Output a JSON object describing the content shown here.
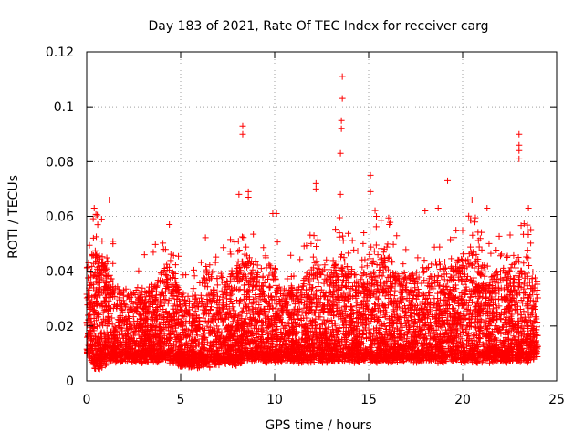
{
  "chart_data": {
    "type": "scatter",
    "title": "Day 183 of 2021, Rate Of TEC Index for receiver carg",
    "xlabel": "GPS time / hours",
    "ylabel": "ROTI / TECUs",
    "xlim": [
      0,
      25
    ],
    "ylim": [
      0,
      0.12
    ],
    "xticks": [
      0,
      5,
      10,
      15,
      20,
      25
    ],
    "xtick_labels": [
      "0",
      "5",
      "10",
      "15",
      "20",
      "25"
    ],
    "yticks": [
      0,
      0.02,
      0.04,
      0.06,
      0.08,
      0.1,
      0.12
    ],
    "ytick_labels": [
      "0",
      "0.02",
      "0.04",
      "0.06",
      "0.08",
      "0.1",
      "0.12"
    ],
    "grid": true,
    "marker": "+",
    "color": "#ff0000",
    "data_range_x": [
      0,
      24
    ],
    "notable_points": [
      {
        "x": 8.3,
        "y": 0.093
      },
      {
        "x": 8.3,
        "y": 0.09
      },
      {
        "x": 13.6,
        "y": 0.111
      },
      {
        "x": 13.6,
        "y": 0.103
      },
      {
        "x": 13.55,
        "y": 0.095
      },
      {
        "x": 13.55,
        "y": 0.092
      },
      {
        "x": 13.5,
        "y": 0.083
      },
      {
        "x": 13.5,
        "y": 0.068
      },
      {
        "x": 23.0,
        "y": 0.09
      },
      {
        "x": 23.0,
        "y": 0.086
      },
      {
        "x": 23.0,
        "y": 0.084
      },
      {
        "x": 23.0,
        "y": 0.081
      },
      {
        "x": 19.2,
        "y": 0.073
      },
      {
        "x": 15.1,
        "y": 0.075
      },
      {
        "x": 15.1,
        "y": 0.069
      },
      {
        "x": 12.2,
        "y": 0.072
      },
      {
        "x": 12.2,
        "y": 0.07
      },
      {
        "x": 8.6,
        "y": 0.069
      },
      {
        "x": 8.6,
        "y": 0.067
      },
      {
        "x": 8.1,
        "y": 0.068
      },
      {
        "x": 1.2,
        "y": 0.066
      },
      {
        "x": 20.5,
        "y": 0.066
      },
      {
        "x": 0.4,
        "y": 0.063
      },
      {
        "x": 21.3,
        "y": 0.063
      },
      {
        "x": 23.5,
        "y": 0.063
      },
      {
        "x": 18.0,
        "y": 0.062
      },
      {
        "x": 18.7,
        "y": 0.063
      },
      {
        "x": 9.9,
        "y": 0.061
      },
      {
        "x": 10.1,
        "y": 0.061
      },
      {
        "x": 4.4,
        "y": 0.057
      },
      {
        "x": 16.1,
        "y": 0.057
      }
    ],
    "bulk_profile": {
      "hours": [
        0,
        0.5,
        1,
        1.5,
        2,
        2.5,
        3,
        3.5,
        4,
        4.5,
        5,
        5.5,
        6,
        6.5,
        7,
        7.5,
        8,
        8.5,
        9,
        9.5,
        10,
        10.5,
        11,
        11.5,
        12,
        12.5,
        13,
        13.5,
        14,
        14.5,
        15,
        15.5,
        16,
        16.5,
        17,
        17.5,
        18,
        18.5,
        19,
        19.5,
        20,
        20.5,
        21,
        21.5,
        22,
        22.5,
        23,
        23.5,
        24
      ],
      "typical_min": [
        0.01,
        0.005,
        0.007,
        0.008,
        0.008,
        0.008,
        0.008,
        0.008,
        0.008,
        0.008,
        0.006,
        0.006,
        0.006,
        0.006,
        0.007,
        0.007,
        0.007,
        0.009,
        0.008,
        0.008,
        0.008,
        0.008,
        0.008,
        0.008,
        0.008,
        0.008,
        0.008,
        0.008,
        0.008,
        0.008,
        0.008,
        0.008,
        0.008,
        0.008,
        0.008,
        0.008,
        0.008,
        0.008,
        0.008,
        0.008,
        0.008,
        0.008,
        0.008,
        0.008,
        0.008,
        0.008,
        0.008,
        0.008,
        0.01
      ],
      "typical_max": [
        0.043,
        0.048,
        0.045,
        0.035,
        0.033,
        0.033,
        0.033,
        0.035,
        0.04,
        0.045,
        0.032,
        0.03,
        0.035,
        0.042,
        0.038,
        0.038,
        0.042,
        0.048,
        0.038,
        0.045,
        0.04,
        0.035,
        0.035,
        0.035,
        0.045,
        0.042,
        0.04,
        0.048,
        0.042,
        0.038,
        0.045,
        0.05,
        0.05,
        0.04,
        0.04,
        0.038,
        0.042,
        0.045,
        0.045,
        0.042,
        0.045,
        0.048,
        0.045,
        0.04,
        0.04,
        0.045,
        0.045,
        0.045,
        0.035
      ]
    }
  }
}
